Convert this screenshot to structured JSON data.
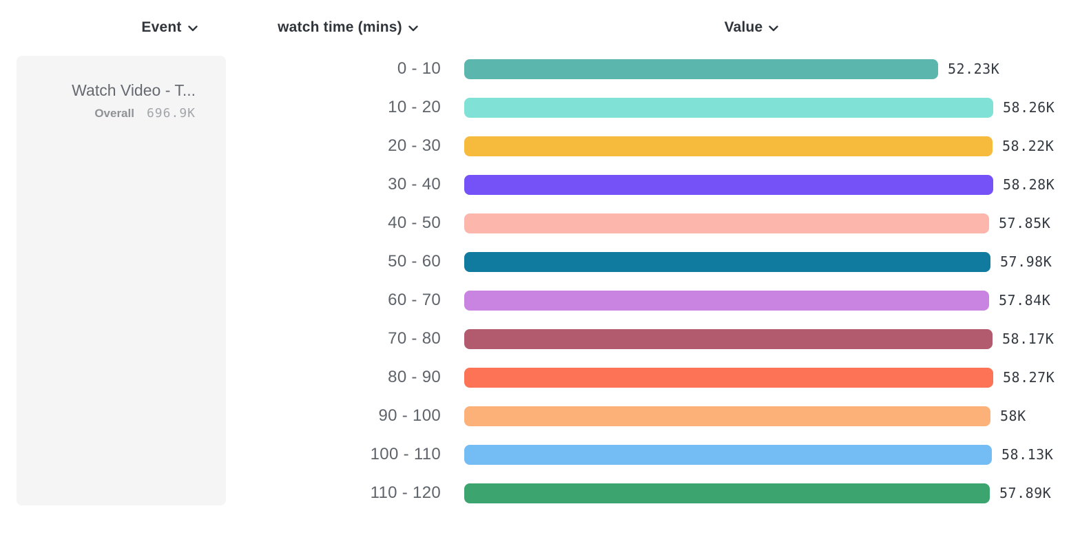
{
  "header": {
    "columns": [
      {
        "label": "Event"
      },
      {
        "label": "watch time (mins)"
      },
      {
        "label": "Value"
      }
    ]
  },
  "event_card": {
    "title": "Watch Video - T...",
    "overall_label": "Overall",
    "overall_value": "696.9K"
  },
  "chart_data": {
    "type": "bar",
    "orientation": "horizontal",
    "title": "",
    "xlabel": "Value",
    "ylabel": "watch time (mins)",
    "xlim": [
      0,
      58280
    ],
    "grid": false,
    "categories": [
      "0 - 10",
      "10 - 20",
      "20 - 30",
      "30 - 40",
      "40 - 50",
      "50 - 60",
      "60 - 70",
      "70 - 80",
      "80 - 90",
      "90 - 100",
      "100 - 110",
      "110 - 120"
    ],
    "values": [
      52230,
      58260,
      58220,
      58280,
      57850,
      57980,
      57840,
      58170,
      58270,
      58000,
      58130,
      57890
    ],
    "value_labels": [
      "52.23K",
      "58.26K",
      "58.22K",
      "58.28K",
      "57.85K",
      "57.98K",
      "57.84K",
      "58.17K",
      "58.27K",
      "58K",
      "58.13K",
      "57.89K"
    ],
    "colors": [
      "#5bb7ae",
      "#80e2d6",
      "#f6ba3c",
      "#7452f7",
      "#fcb6ac",
      "#107b9f",
      "#c983e0",
      "#b25a6e",
      "#fc7356",
      "#fcb179",
      "#74bdf4",
      "#3ca46f"
    ]
  }
}
